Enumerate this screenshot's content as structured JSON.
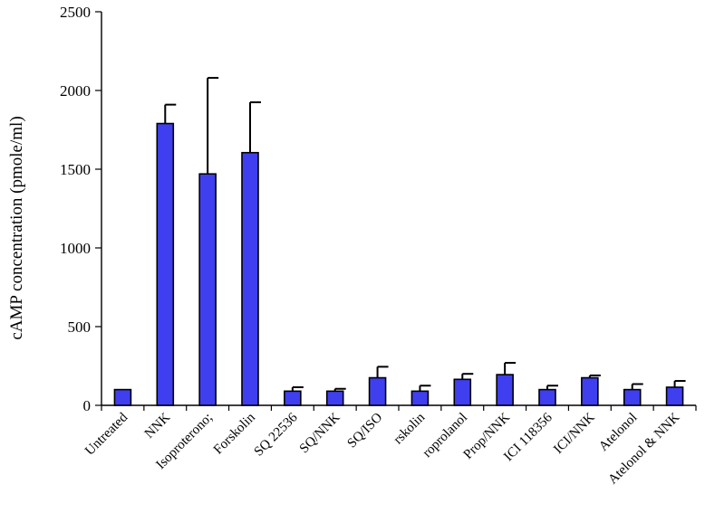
{
  "chart_data": {
    "type": "bar",
    "title": "",
    "xlabel": "",
    "ylabel": "cAMP concentration (pmole/ml)",
    "ylim": [
      0,
      2500
    ],
    "yticks": [
      0,
      500,
      1000,
      1500,
      2000,
      2500
    ],
    "grid": false,
    "legend": "none",
    "bar_color": "#3f3ff0",
    "categories": [
      "Untreated",
      "NNK",
      "Isoproterono;",
      "Forskolin",
      "SQ 22536",
      "SQ/NNK",
      "SQ/ISO",
      "rskolin",
      "roprolanol",
      "Prop/NNK",
      "ICI 118356",
      "ICI/NNK",
      "Atelonol",
      "Atelonol & NNK"
    ],
    "values": [
      100,
      1790,
      1470,
      1605,
      90,
      90,
      175,
      90,
      165,
      195,
      100,
      175,
      100,
      115
    ],
    "error_upper": [
      0,
      120,
      610,
      320,
      25,
      15,
      70,
      35,
      35,
      75,
      25,
      15,
      35,
      40
    ]
  }
}
